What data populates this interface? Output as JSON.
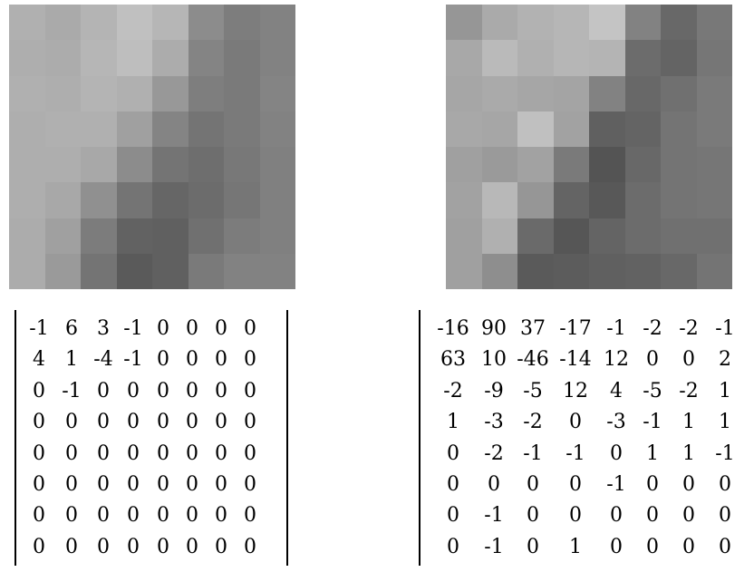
{
  "left_block": {
    "image": {
      "pixels": [
        [
          176,
          170,
          180,
          192,
          182,
          140,
          125,
          130
        ],
        [
          174,
          172,
          182,
          190,
          172,
          132,
          122,
          130
        ],
        [
          176,
          174,
          180,
          176,
          152,
          126,
          122,
          132
        ],
        [
          174,
          176,
          176,
          160,
          132,
          116,
          122,
          130
        ],
        [
          174,
          174,
          168,
          140,
          116,
          110,
          120,
          128
        ],
        [
          174,
          168,
          144,
          116,
          102,
          108,
          118,
          128
        ],
        [
          172,
          160,
          124,
          98,
          96,
          112,
          124,
          128
        ],
        [
          172,
          154,
          116,
          90,
          96,
          122,
          130,
          130
        ]
      ]
    },
    "matrix": [
      [
        "-1",
        "6",
        "3",
        "-1",
        "0",
        "0",
        "0",
        "0"
      ],
      [
        "4",
        "1",
        "-4",
        "-1",
        "0",
        "0",
        "0",
        "0"
      ],
      [
        "0",
        "-1",
        "0",
        "0",
        "0",
        "0",
        "0",
        "0"
      ],
      [
        "0",
        "0",
        "0",
        "0",
        "0",
        "0",
        "0",
        "0"
      ],
      [
        "0",
        "0",
        "0",
        "0",
        "0",
        "0",
        "0",
        "0"
      ],
      [
        "0",
        "0",
        "0",
        "0",
        "0",
        "0",
        "0",
        "0"
      ],
      [
        "0",
        "0",
        "0",
        "0",
        "0",
        "0",
        "0",
        "0"
      ],
      [
        "0",
        "0",
        "0",
        "0",
        "0",
        "0",
        "0",
        "0"
      ]
    ]
  },
  "right_block": {
    "image": {
      "pixels": [
        [
          150,
          170,
          178,
          182,
          196,
          130,
          104,
          120
        ],
        [
          168,
          186,
          176,
          182,
          180,
          108,
          100,
          118
        ],
        [
          166,
          170,
          166,
          164,
          130,
          104,
          112,
          122
        ],
        [
          168,
          166,
          192,
          162,
          96,
          100,
          116,
          122
        ],
        [
          160,
          154,
          162,
          122,
          84,
          104,
          116,
          118
        ],
        [
          162,
          184,
          150,
          100,
          88,
          108,
          116,
          118
        ],
        [
          160,
          176,
          106,
          86,
          100,
          108,
          112,
          112
        ],
        [
          160,
          142,
          90,
          92,
          96,
          98,
          104,
          116
        ]
      ]
    },
    "matrix": [
      [
        "-16",
        "90",
        "37",
        "-17",
        "-1",
        "-2",
        "-2",
        "-1"
      ],
      [
        "63",
        "10",
        "-46",
        "-14",
        "12",
        "0",
        "0",
        "2"
      ],
      [
        "-2",
        "-9",
        "-5",
        "12",
        "4",
        "-5",
        "-2",
        "1"
      ],
      [
        "1",
        "-3",
        "-2",
        "0",
        "-3",
        "-1",
        "1",
        "1"
      ],
      [
        "0",
        "-2",
        "-1",
        "-1",
        "0",
        "1",
        "1",
        "-1"
      ],
      [
        "0",
        "0",
        "0",
        "0",
        "-1",
        "0",
        "0",
        "0"
      ],
      [
        "0",
        "-1",
        "0",
        "0",
        "0",
        "0",
        "0",
        "0"
      ],
      [
        "0",
        "-1",
        "0",
        "1",
        "0",
        "0",
        "0",
        "0"
      ]
    ]
  }
}
